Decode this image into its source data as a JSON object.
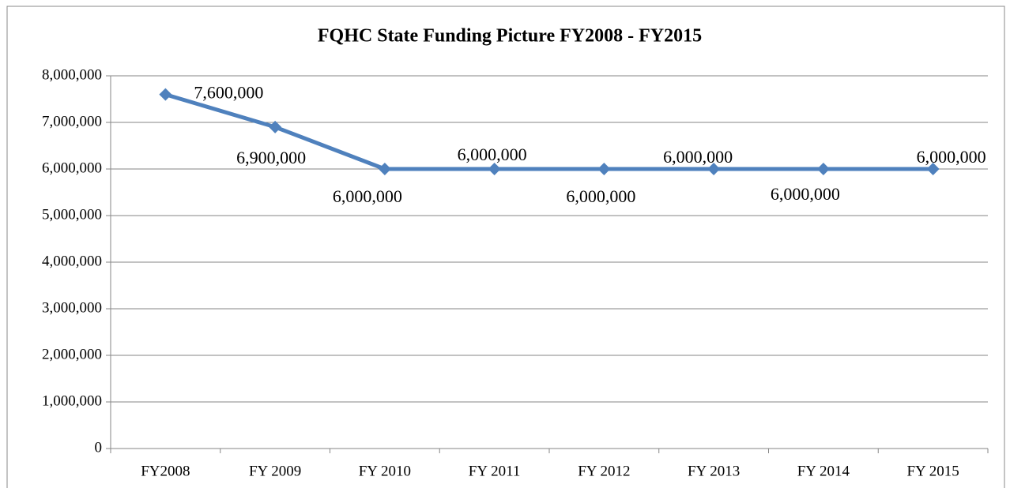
{
  "chart_data": {
    "type": "line",
    "title": "FQHC State Funding Picture FY2008 - FY2015",
    "categories": [
      "FY2008",
      "FY 2009",
      "FY 2010",
      "FY 2011",
      "FY 2012",
      "FY 2013",
      "FY 2014",
      "FY 2015"
    ],
    "series": [
      {
        "name": "FQHC State Funding",
        "color": "#4f81bd",
        "values": [
          7600000,
          6900000,
          6000000,
          6000000,
          6000000,
          6000000,
          6000000,
          6000000
        ],
        "value_labels": [
          "7,600,000",
          "6,900,000",
          "6,000,000",
          "6,000,000",
          "6,000,000",
          "6,000,000",
          "6,000,000",
          "6,000,000"
        ]
      }
    ],
    "ylim": [
      0,
      8000000
    ],
    "yticks": [
      0,
      {
        "value": 1000000,
        "label": "1,000,000"
      },
      {
        "value": 2000000,
        "label": "2,000,000"
      },
      {
        "value": 3000000,
        "label": "3,000,000"
      },
      {
        "value": 4000000,
        "label": "4,000,000"
      },
      {
        "value": 5000000,
        "label": "5,000,000"
      },
      {
        "value": 6000000,
        "label": "6,000,000"
      },
      {
        "value": 7000000,
        "label": "7,000,000"
      },
      {
        "value": 8000000,
        "label": "8,000,000"
      }
    ],
    "grid": true
  }
}
